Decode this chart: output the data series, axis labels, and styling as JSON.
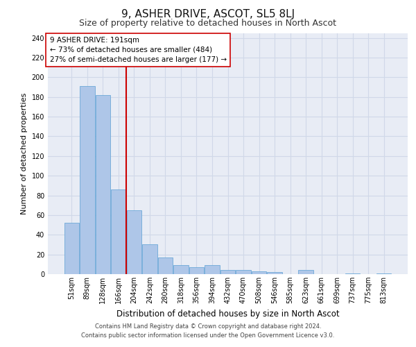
{
  "title1": "9, ASHER DRIVE, ASCOT, SL5 8LJ",
  "title2": "Size of property relative to detached houses in North Ascot",
  "xlabel": "Distribution of detached houses by size in North Ascot",
  "ylabel": "Number of detached properties",
  "categories": [
    "51sqm",
    "89sqm",
    "128sqm",
    "166sqm",
    "204sqm",
    "242sqm",
    "280sqm",
    "318sqm",
    "356sqm",
    "394sqm",
    "432sqm",
    "470sqm",
    "508sqm",
    "546sqm",
    "585sqm",
    "623sqm",
    "661sqm",
    "699sqm",
    "737sqm",
    "775sqm",
    "813sqm"
  ],
  "values": [
    52,
    191,
    182,
    86,
    65,
    30,
    17,
    9,
    7,
    9,
    4,
    4,
    3,
    2,
    0,
    4,
    0,
    0,
    1,
    0,
    1
  ],
  "bar_color": "#aec6e8",
  "bar_edge_color": "#5a9fd4",
  "vline_x": 3.5,
  "vline_color": "#cc0000",
  "annotation_text": "9 ASHER DRIVE: 191sqm\n← 73% of detached houses are smaller (484)\n27% of semi-detached houses are larger (177) →",
  "annotation_box_color": "#ffffff",
  "annotation_box_edge": "#cc0000",
  "ylim": [
    0,
    245
  ],
  "yticks": [
    0,
    20,
    40,
    60,
    80,
    100,
    120,
    140,
    160,
    180,
    200,
    220,
    240
  ],
  "grid_color": "#d0d8e8",
  "background_color": "#e8ecf5",
  "footer1": "Contains HM Land Registry data © Crown copyright and database right 2024.",
  "footer2": "Contains public sector information licensed under the Open Government Licence v3.0.",
  "title1_fontsize": 11,
  "title2_fontsize": 9,
  "xlabel_fontsize": 8.5,
  "ylabel_fontsize": 8,
  "tick_fontsize": 7,
  "annotation_fontsize": 7.5,
  "footer_fontsize": 6.0
}
